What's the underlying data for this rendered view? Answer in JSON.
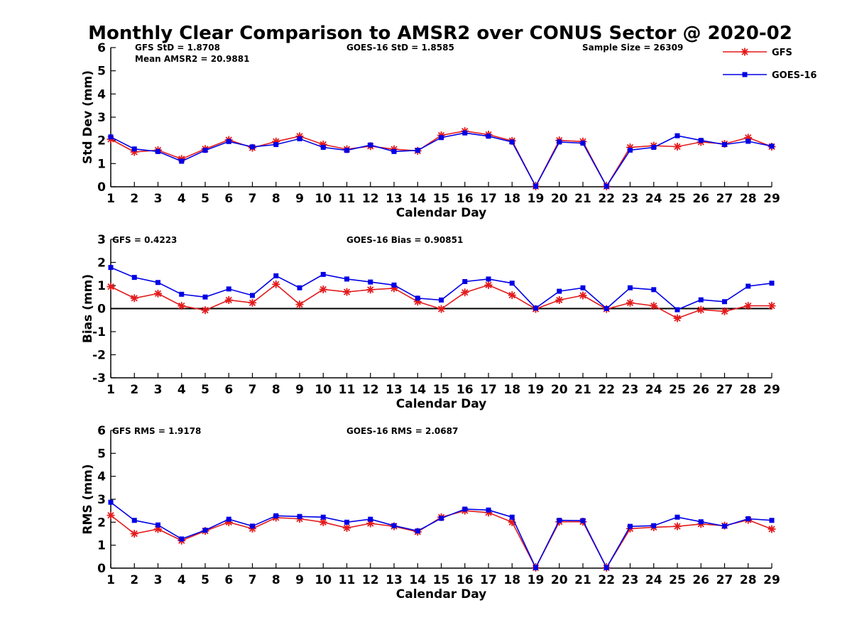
{
  "figure": {
    "title": "Monthly Clear Comparison to AMSR2 over CONUS Sector @ 2020-02",
    "legend": {
      "placement": "top-right",
      "entries": [
        {
          "label": "GFS",
          "color": "#e31a1c",
          "marker": "asterisk"
        },
        {
          "label": "GOES-16",
          "color": "#0000e6",
          "marker": "square"
        }
      ]
    }
  },
  "chart_data": [
    {
      "type": "line",
      "xlabel": "Calendar Day",
      "ylabel": "Std Dev (mm)",
      "xlim": [
        1,
        29
      ],
      "ylim": [
        0,
        6
      ],
      "yticks": [
        0,
        1,
        2,
        3,
        4,
        5,
        6
      ],
      "zero_line": false,
      "annotations": [
        "GFS StD = 1.8708",
        "Mean AMSR2 = 20.9881",
        "GOES-16 StD = 1.8585",
        "Sample Size = 26309"
      ],
      "x": [
        1,
        2,
        3,
        4,
        5,
        6,
        7,
        8,
        9,
        10,
        11,
        12,
        13,
        14,
        15,
        16,
        17,
        18,
        19,
        20,
        21,
        22,
        23,
        24,
        25,
        26,
        27,
        28,
        29
      ],
      "series": [
        {
          "name": "GFS",
          "color": "#e31a1c",
          "marker": "asterisk",
          "values": [
            2.05,
            1.5,
            1.58,
            1.2,
            1.63,
            2.02,
            1.68,
            1.95,
            2.18,
            1.82,
            1.62,
            1.75,
            1.62,
            1.55,
            2.22,
            2.4,
            2.25,
            1.98,
            0.02,
            2.0,
            1.95,
            0.02,
            1.7,
            1.77,
            1.73,
            1.93,
            1.85,
            2.12,
            1.73
          ]
        },
        {
          "name": "GOES-16",
          "color": "#0000e6",
          "marker": "square",
          "values": [
            2.15,
            1.63,
            1.52,
            1.1,
            1.57,
            1.95,
            1.72,
            1.82,
            2.07,
            1.7,
            1.57,
            1.8,
            1.52,
            1.57,
            2.12,
            2.32,
            2.18,
            1.93,
            0.02,
            1.93,
            1.88,
            0.02,
            1.58,
            1.7,
            2.2,
            2.0,
            1.82,
            1.96,
            1.75
          ]
        }
      ]
    },
    {
      "type": "line",
      "xlabel": "Calendar Day",
      "ylabel": "Bias (mm)",
      "xlim": [
        1,
        29
      ],
      "ylim": [
        -3,
        3
      ],
      "yticks": [
        -3,
        -2,
        -1,
        0,
        1,
        2,
        3
      ],
      "zero_line": true,
      "annotations": [
        "GFS = 0.4223",
        "GOES-16 Bias = 0.90851"
      ],
      "x": [
        1,
        2,
        3,
        4,
        5,
        6,
        7,
        8,
        9,
        10,
        11,
        12,
        13,
        14,
        15,
        16,
        17,
        18,
        19,
        20,
        21,
        22,
        23,
        24,
        25,
        26,
        27,
        28,
        29
      ],
      "series": [
        {
          "name": "GFS",
          "color": "#e31a1c",
          "marker": "asterisk",
          "values": [
            0.95,
            0.45,
            0.65,
            0.12,
            -0.07,
            0.37,
            0.25,
            1.05,
            0.18,
            0.83,
            0.72,
            0.82,
            0.88,
            0.3,
            -0.02,
            0.7,
            1.02,
            0.58,
            -0.02,
            0.37,
            0.57,
            -0.02,
            0.25,
            0.12,
            -0.42,
            -0.05,
            -0.12,
            0.12,
            0.12
          ]
        },
        {
          "name": "GOES-16",
          "color": "#0000e6",
          "marker": "square",
          "values": [
            1.78,
            1.35,
            1.13,
            0.62,
            0.5,
            0.85,
            0.57,
            1.42,
            0.9,
            1.48,
            1.28,
            1.15,
            1.02,
            0.45,
            0.37,
            1.17,
            1.28,
            1.1,
            0.02,
            0.75,
            0.9,
            0.0,
            0.9,
            0.82,
            -0.05,
            0.38,
            0.3,
            0.97,
            1.1
          ]
        }
      ]
    },
    {
      "type": "line",
      "xlabel": "Calendar Day",
      "ylabel": "RMS (mm)",
      "xlim": [
        1,
        29
      ],
      "ylim": [
        0,
        6
      ],
      "yticks": [
        0,
        1,
        2,
        3,
        4,
        5,
        6
      ],
      "zero_line": false,
      "annotations": [
        "GFS RMS = 1.9178",
        "GOES-16 RMS = 2.0687"
      ],
      "x": [
        1,
        2,
        3,
        4,
        5,
        6,
        7,
        8,
        9,
        10,
        11,
        12,
        13,
        14,
        15,
        16,
        17,
        18,
        19,
        20,
        21,
        22,
        23,
        24,
        25,
        26,
        27,
        28,
        29
      ],
      "series": [
        {
          "name": "GFS",
          "color": "#e31a1c",
          "marker": "asterisk",
          "values": [
            2.3,
            1.5,
            1.7,
            1.2,
            1.62,
            2.0,
            1.72,
            2.2,
            2.15,
            2.0,
            1.75,
            1.95,
            1.82,
            1.58,
            2.22,
            2.5,
            2.42,
            2.0,
            0.02,
            2.02,
            2.02,
            0.02,
            1.72,
            1.78,
            1.82,
            1.92,
            1.85,
            2.1,
            1.7
          ]
        },
        {
          "name": "GOES-16",
          "color": "#0000e6",
          "marker": "square",
          "values": [
            2.87,
            2.08,
            1.88,
            1.27,
            1.65,
            2.13,
            1.83,
            2.28,
            2.25,
            2.22,
            2.0,
            2.13,
            1.85,
            1.62,
            2.17,
            2.57,
            2.53,
            2.22,
            0.02,
            2.08,
            2.07,
            0.02,
            1.82,
            1.85,
            2.22,
            2.02,
            1.83,
            2.15,
            2.08
          ]
        }
      ]
    }
  ]
}
